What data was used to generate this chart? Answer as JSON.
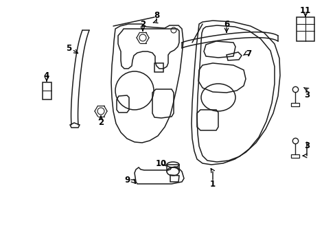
{
  "bg_color": "#ffffff",
  "line_color": "#1a1a1a",
  "lw": 1.1,
  "figsize": [
    4.89,
    3.6
  ],
  "dpi": 100
}
